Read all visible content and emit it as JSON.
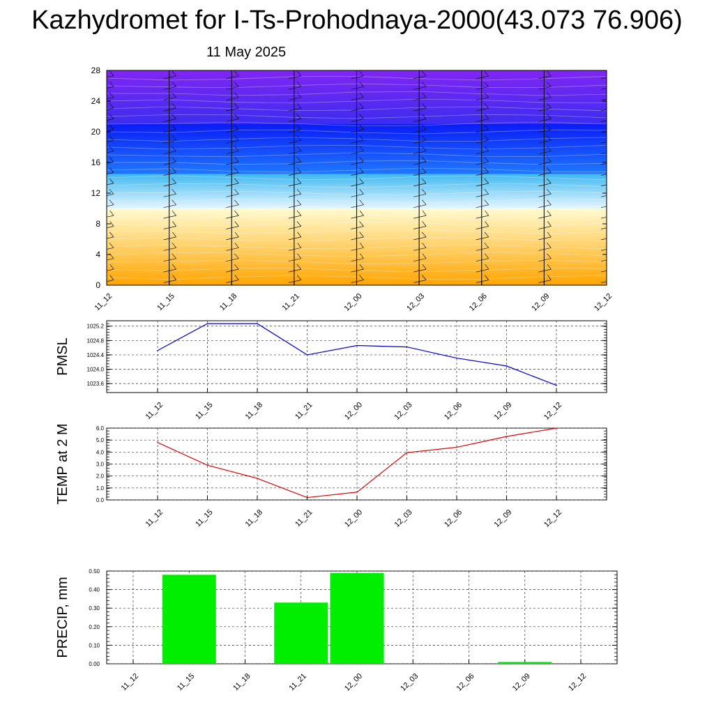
{
  "header": {
    "title": "Kazhydromet for I-Ts-Prohodnaya-2000(43.073 76.906)",
    "date": "11 May 2025"
  },
  "chart_data": [
    {
      "type": "heatmap",
      "title": "",
      "ylabel": "",
      "categories": [
        "11_12",
        "11_15",
        "11_18",
        "11_21",
        "12_00",
        "12_03",
        "12_06",
        "12_09",
        "12_12"
      ],
      "y_ticks": [
        0,
        4,
        8,
        12,
        16,
        20,
        24,
        28
      ],
      "ylim": [
        0,
        28
      ],
      "description_layers": {
        "bands": [
          {
            "from": 0,
            "to": 10,
            "color_bottom": "#ffa500",
            "color_top": "#fffbd0"
          },
          {
            "from": 10,
            "to": 14.5,
            "color_bottom": "#e6f6ff",
            "color_top": "#3fb8f0"
          },
          {
            "from": 14.5,
            "to": 21,
            "color_bottom": "#1f78ff",
            "color_top": "#0a1cf5"
          },
          {
            "from": 21,
            "to": 28,
            "color_bottom": "#3d2cf0",
            "color_top": "#8026f2"
          }
        ]
      },
      "wind_barbs": true
    },
    {
      "type": "line",
      "ylabel": "PMSL",
      "categories": [
        "11_12",
        "11_15",
        "11_18",
        "11_21",
        "12_00",
        "12_03",
        "12_06",
        "12_09",
        "12_12"
      ],
      "y_ticks": [
        "1023.6",
        "1024.0",
        "1024.4",
        "1024.8",
        "1025.2"
      ],
      "ylim": [
        1023.35,
        1025.35
      ],
      "series": [
        {
          "values": [
            1024.52,
            1025.27,
            1025.27,
            1024.4,
            1024.66,
            1024.62,
            1024.31,
            1024.09,
            1023.55
          ],
          "color": "#0000cc"
        }
      ]
    },
    {
      "type": "line",
      "ylabel": "TEMP at 2 M",
      "categories": [
        "11_12",
        "11_15",
        "11_18",
        "11_21",
        "12_00",
        "12_03",
        "12_06",
        "12_09",
        "12_12"
      ],
      "y_ticks": [
        "0.0",
        "1.0",
        "2.0",
        "3.0",
        "4.0",
        "5.0",
        "6.0"
      ],
      "ylim": [
        0,
        6
      ],
      "series": [
        {
          "values": [
            4.8,
            2.9,
            1.8,
            0.2,
            0.65,
            3.95,
            4.4,
            5.3,
            6.0
          ],
          "color": "#dd0000"
        }
      ]
    },
    {
      "type": "bar",
      "ylabel": "PRECIP, mm",
      "categories": [
        "11_12",
        "11_15",
        "11_18",
        "11_21",
        "12_00",
        "12_03",
        "12_06",
        "12_09",
        "12_12"
      ],
      "y_ticks": [
        "0.00",
        "0.10",
        "0.20",
        "0.30",
        "0.40",
        "0.50"
      ],
      "ylim": [
        0,
        0.5
      ],
      "values": [
        0,
        0.48,
        0,
        0.33,
        0.49,
        0,
        0,
        0.01,
        0
      ],
      "color": "#00ee00"
    }
  ]
}
